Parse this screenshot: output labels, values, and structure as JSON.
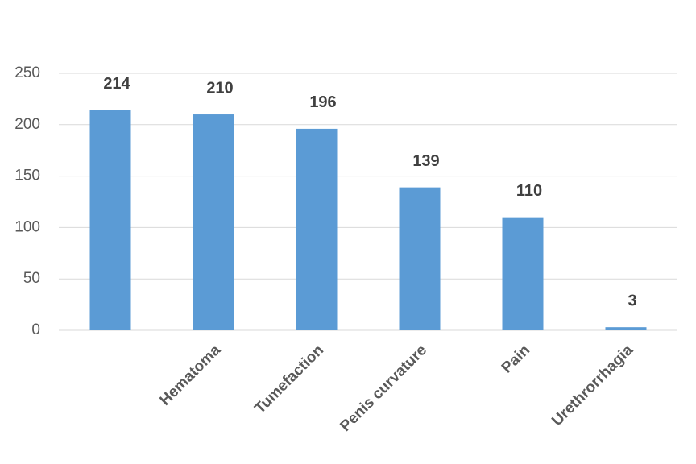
{
  "chart_data": {
    "type": "bar",
    "categories": [
      null,
      "Hematoma",
      "Tumefaction",
      "Penis curvature",
      "Pain",
      "Urethrorrhagia"
    ],
    "values": [
      214,
      210,
      196,
      139,
      110,
      3
    ],
    "color": "#5b9bd5",
    "ylim": [
      0,
      250
    ],
    "yticks": [
      0,
      50,
      100,
      150,
      200,
      250
    ],
    "grid": true
  }
}
